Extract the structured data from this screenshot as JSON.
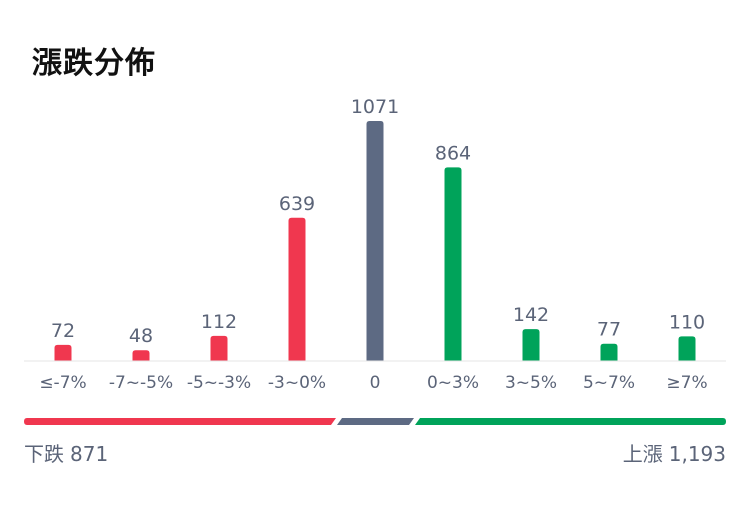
{
  "header": {
    "title": "漲跌分佈"
  },
  "colors": {
    "down": "#f0374f",
    "flat": "#5d6a83",
    "up": "#00a35a",
    "text": "#5b6478",
    "axis": "#e6e6e6"
  },
  "chart_data": {
    "type": "bar",
    "title": "漲跌分佈",
    "categories": [
      "≤-7%",
      "-7~-5%",
      "-5~-3%",
      "-3~0%",
      "0",
      "0~3%",
      "3~5%",
      "5~7%",
      "≥7%"
    ],
    "values": [
      72,
      48,
      112,
      639,
      1071,
      864,
      142,
      77,
      110
    ],
    "bar_colors": [
      "down",
      "down",
      "down",
      "down",
      "flat",
      "up",
      "up",
      "up",
      "up"
    ],
    "ylim": [
      0,
      1071
    ],
    "grid": false,
    "legend": "none"
  },
  "summary": {
    "down_label": "下跌",
    "down_count": "871",
    "up_label": "上漲",
    "up_count": "1,193"
  }
}
